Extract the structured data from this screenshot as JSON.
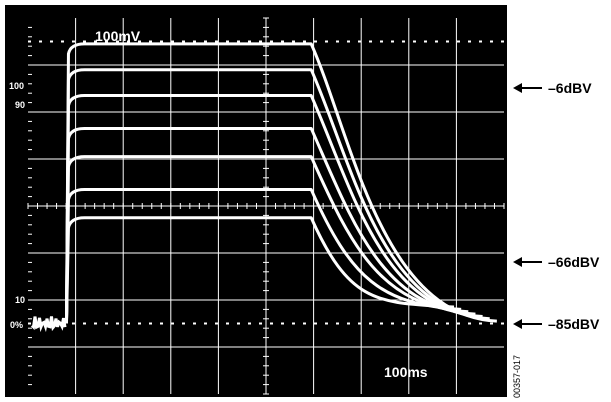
{
  "screen": {
    "volts_per_div": "100mV",
    "time_per_div": "100ms",
    "ref_100_label": "100",
    "ref_90_label": "90",
    "ref_10_label": "10",
    "ref_0_label": "0%"
  },
  "annotations": {
    "top": "–6dBV",
    "middle": "–66dBV",
    "bottom": "–85dBV"
  },
  "figure_id": "00357-017",
  "colors": {
    "screen_bg": "#000000",
    "trace": "#ffffff",
    "grid": "#ffffff",
    "border": "#000000"
  },
  "chart_data": {
    "type": "line",
    "title": "",
    "xlabel": "100ms",
    "ylabel": "100mV",
    "x_divisions": 10,
    "y_divisions": 8,
    "xlim": [
      0,
      10
    ],
    "ylim": [
      0,
      8
    ],
    "units": "divisions",
    "step_on_div": 0.85,
    "decay_start_div": 5.95,
    "series": [
      {
        "high": 7.45,
        "end_div": 9.85,
        "settle": 1.55
      },
      {
        "high": 6.9,
        "end_div": 9.7,
        "settle": 1.6
      },
      {
        "high": 6.35,
        "end_div": 9.55,
        "settle": 1.65
      },
      {
        "high": 5.65,
        "end_div": 9.4,
        "settle": 1.7
      },
      {
        "high": 5.05,
        "end_div": 9.25,
        "settle": 1.75
      },
      {
        "high": 4.35,
        "end_div": 9.1,
        "settle": 1.8
      },
      {
        "high": 3.75,
        "end_div": 8.95,
        "settle": 1.85
      }
    ]
  }
}
